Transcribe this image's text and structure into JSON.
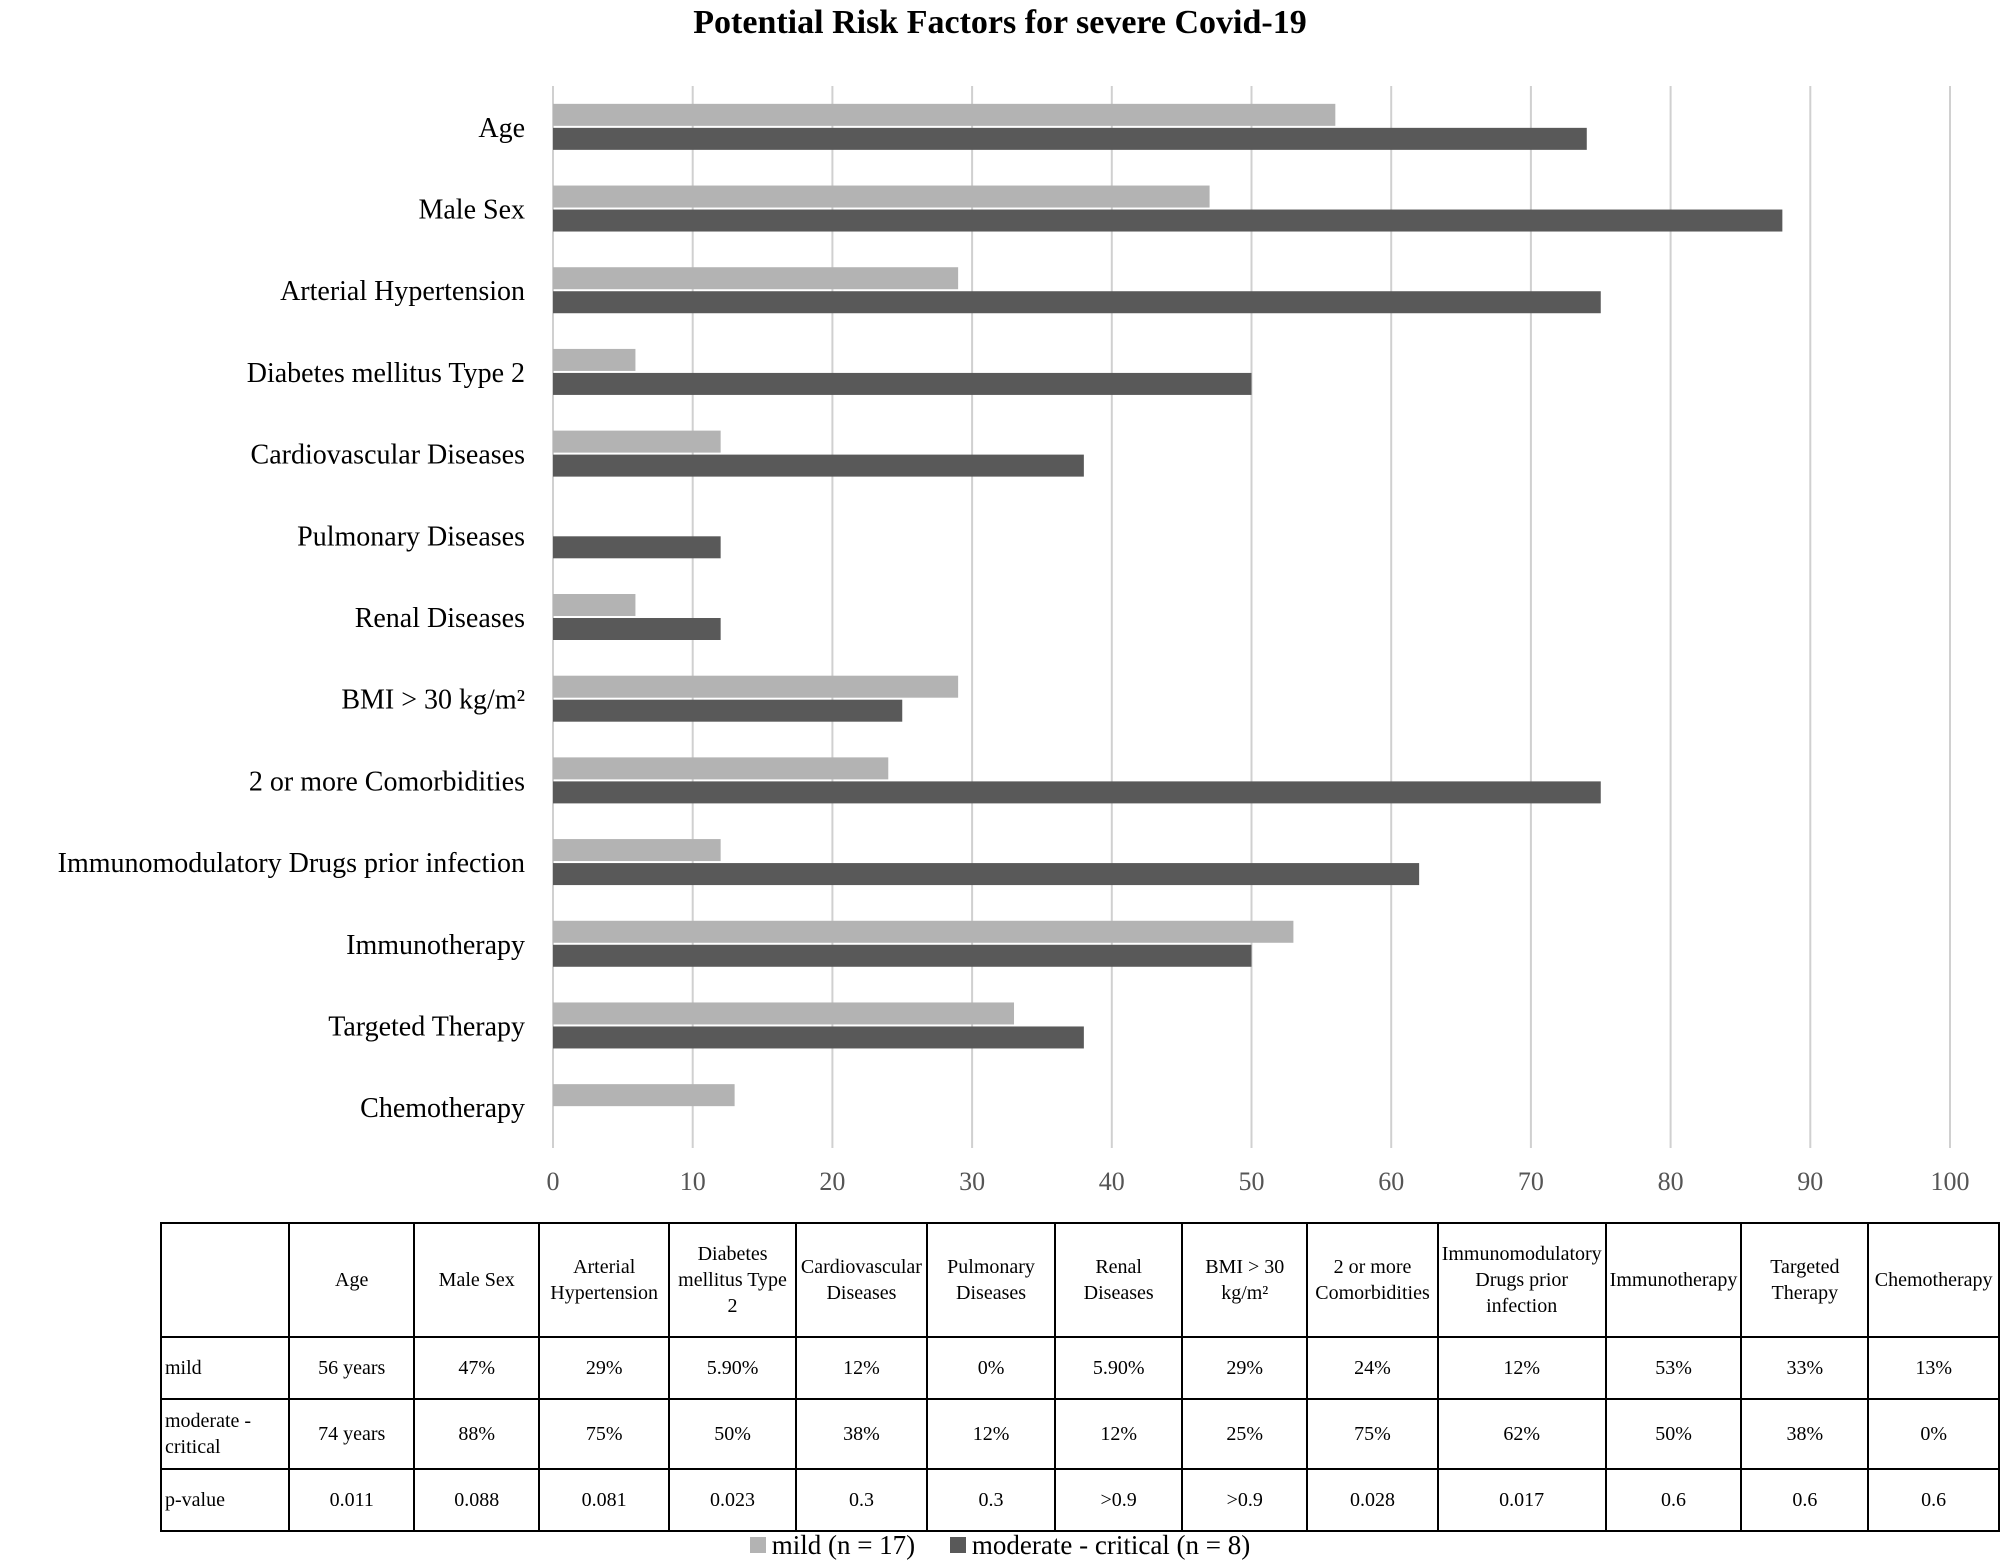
{
  "chart_data": {
    "type": "bar",
    "orientation": "horizontal",
    "title": "Potential Risk Factors for severe Covid-19",
    "categories": [
      "Age",
      "Male Sex",
      "Arterial Hypertension",
      "Diabetes mellitus Type 2",
      "Cardiovascular Diseases",
      "Pulmonary Diseases",
      "Renal Diseases",
      "BMI > 30 kg/m²",
      "2 or more Comorbidities",
      "Immunomodulatory Drugs prior infection",
      "Immunotherapy",
      "Targeted Therapy",
      "Chemotherapy"
    ],
    "series": [
      {
        "name": "mild (n = 17)",
        "color": "#b3b3b3",
        "values": [
          56,
          47,
          29,
          5.9,
          12,
          0,
          5.9,
          29,
          24,
          12,
          53,
          33,
          13
        ]
      },
      {
        "name": "moderate - critical (n = 8)",
        "color": "#595959",
        "values": [
          74,
          88,
          75,
          50,
          38,
          12,
          12,
          25,
          75,
          62,
          50,
          38,
          0
        ]
      }
    ],
    "xlim": [
      0,
      100
    ],
    "xticks": [
      0,
      10,
      20,
      30,
      40,
      50,
      60,
      70,
      80,
      90,
      100
    ],
    "grid": true,
    "legend_position": "bottom"
  },
  "table": {
    "headers": [
      "",
      "Age",
      "Male Sex",
      "Arterial Hypertension",
      "Diabetes mellitus Type 2",
      "Cardiovascular Diseases",
      "Pulmonary Diseases",
      "Renal Diseases",
      "BMI > 30 kg/m²",
      "2 or more Comorbidities",
      "Immunomodulatory Drugs prior infection",
      "Immunotherapy",
      "Targeted Therapy",
      "Chemotherapy"
    ],
    "rows": [
      [
        "mild",
        "56 years",
        "47%",
        "29%",
        "5.90%",
        "12%",
        "0%",
        "5.90%",
        "29%",
        "24%",
        "12%",
        "53%",
        "33%",
        "13%"
      ],
      [
        "moderate - critical",
        "74 years",
        "88%",
        "75%",
        "50%",
        "38%",
        "12%",
        "12%",
        "25%",
        "75%",
        "62%",
        "50%",
        "38%",
        "0%"
      ],
      [
        "p-value",
        "0.011",
        "0.088",
        "0.081",
        "0.023",
        "0.3",
        "0.3",
        ">0.9",
        ">0.9",
        "0.028",
        "0.017",
        "0.6",
        "0.6",
        "0.6"
      ]
    ]
  }
}
